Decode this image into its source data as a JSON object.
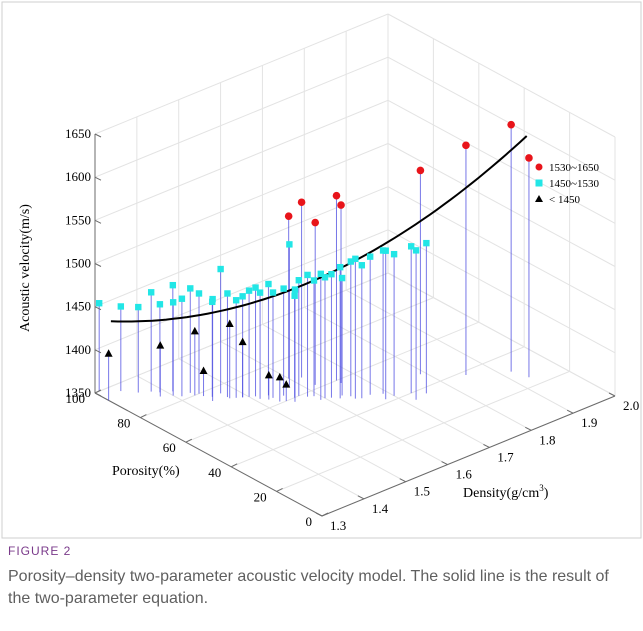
{
  "figure": {
    "label": "FIGURE 2",
    "caption": "Porosity–density two-parameter acoustic velocity model. The solid line is the result of the two-parameter equation."
  },
  "colors": {
    "high": "#e8141a",
    "mid": "#22e6e6",
    "low": "#000000",
    "stem": "#4a4ae0",
    "curve": "#000000"
  },
  "chart_data": {
    "type": "scatter3d",
    "zlabel": "Acoustic velocity(m/s)",
    "ylabel": "Porosity(%)",
    "xlabel_main": "Density(g/cm",
    "xlabel_sup": "3",
    "xlabel_tail": ")",
    "zlim": [
      1350,
      1650
    ],
    "ylim": [
      0,
      100
    ],
    "xlim": [
      1.3,
      2.0
    ],
    "z_ticks": [
      "1350",
      "1400",
      "1450",
      "1500",
      "1550",
      "1600",
      "1650"
    ],
    "y_ticks": [
      "0",
      "20",
      "40",
      "60",
      "80",
      "100"
    ],
    "x_ticks": [
      "1.3",
      "1.4",
      "1.5",
      "1.6",
      "1.7",
      "1.8",
      "1.9",
      "2.0"
    ],
    "legend": [
      {
        "label": "1530~1650",
        "marker": "circle",
        "color_key": "high"
      },
      {
        "label": "1450~1530",
        "marker": "square",
        "color_key": "mid"
      },
      {
        "label": "< 1450",
        "marker": "triangle",
        "color_key": "low"
      }
    ],
    "series": [
      {
        "label_ref": 0,
        "points": [
          [
            1.79,
            47,
            1586
          ],
          [
            1.85,
            38,
            1616
          ],
          [
            1.92,
            31,
            1636
          ],
          [
            1.93,
            25,
            1604
          ],
          [
            1.66,
            60,
            1564
          ],
          [
            1.66,
            58,
            1556
          ],
          [
            1.62,
            68,
            1553
          ],
          [
            1.62,
            62,
            1538
          ],
          [
            1.6,
            70,
            1538
          ]
        ]
      },
      {
        "label_ref": 1,
        "points": [
          [
            1.31,
            100,
            1452
          ],
          [
            1.34,
            96,
            1448
          ],
          [
            1.36,
            92,
            1449
          ],
          [
            1.38,
            90,
            1465
          ],
          [
            1.39,
            88,
            1452
          ],
          [
            1.41,
            86,
            1473
          ],
          [
            1.4,
            84,
            1458
          ],
          [
            1.41,
            82,
            1463
          ],
          [
            1.43,
            82,
            1471
          ],
          [
            1.44,
            80,
            1466
          ],
          [
            1.45,
            76,
            1460
          ],
          [
            1.44,
            74,
            1468
          ],
          [
            1.47,
            76,
            1494
          ],
          [
            1.47,
            73,
            1470
          ],
          [
            1.48,
            71,
            1463
          ],
          [
            1.49,
            70,
            1467
          ],
          [
            1.5,
            69,
            1473
          ],
          [
            1.51,
            68,
            1476
          ],
          [
            1.51,
            66,
            1473
          ],
          [
            1.53,
            66,
            1479
          ],
          [
            1.53,
            64,
            1472
          ],
          [
            1.55,
            63,
            1474
          ],
          [
            1.56,
            60,
            1468
          ],
          [
            1.55,
            58,
            1480
          ],
          [
            1.57,
            60,
            1484
          ],
          [
            1.58,
            58,
            1491
          ],
          [
            1.59,
            57,
            1484
          ],
          [
            1.59,
            54,
            1496
          ],
          [
            1.6,
            54,
            1490
          ],
          [
            1.61,
            53,
            1493
          ],
          [
            1.62,
            51,
            1502
          ],
          [
            1.63,
            52,
            1486
          ],
          [
            1.64,
            50,
            1506
          ],
          [
            1.64,
            48,
            1512
          ],
          [
            1.65,
            47,
            1504
          ],
          [
            1.67,
            47,
            1510
          ],
          [
            1.69,
            45,
            1516
          ],
          [
            1.68,
            42,
            1522
          ],
          [
            1.7,
            42,
            1514
          ],
          [
            1.73,
            40,
            1520
          ],
          [
            1.72,
            36,
            1523
          ],
          [
            1.75,
            37,
            1524
          ],
          [
            1.58,
            66,
            1515
          ]
        ]
      },
      {
        "label_ref": 2,
        "points": [
          [
            1.3,
            94,
            1404
          ],
          [
            1.38,
            86,
            1409
          ],
          [
            1.43,
            80,
            1424
          ],
          [
            1.47,
            72,
            1436
          ],
          [
            1.49,
            70,
            1414
          ],
          [
            1.44,
            78,
            1379
          ],
          [
            1.52,
            64,
            1378
          ],
          [
            1.53,
            61,
            1378
          ],
          [
            1.54,
            60,
            1369
          ]
        ]
      }
    ],
    "fit_curve_label": "two-parameter equation"
  }
}
